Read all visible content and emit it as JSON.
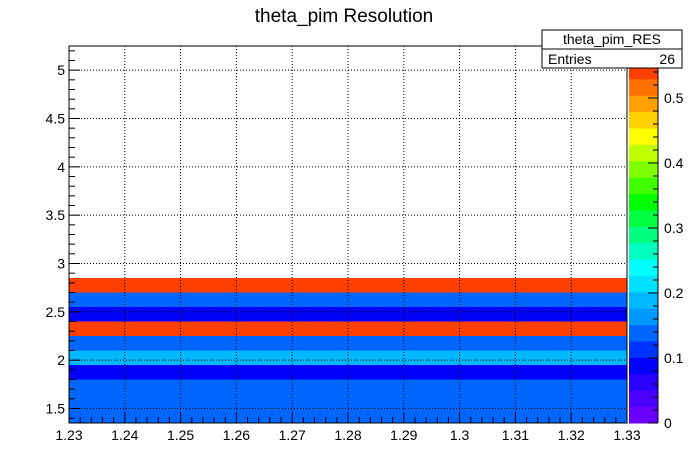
{
  "chart_data": {
    "type": "heatmap",
    "title": "theta_pim Resolution",
    "xlabel": "",
    "ylabel": "",
    "xlim": [
      1.23,
      1.33
    ],
    "ylim": [
      1.35,
      5.25
    ],
    "x_ticks": [
      "1.23",
      "1.24",
      "1.25",
      "1.26",
      "1.27",
      "1.28",
      "1.29",
      "1.3",
      "1.31",
      "1.32",
      "1.33"
    ],
    "y_ticks": [
      "1.5",
      "2",
      "2.5",
      "3",
      "3.5",
      "4",
      "4.5",
      "5"
    ],
    "grid": true,
    "bin_height": 0.15,
    "rows": [
      {
        "y_low": 1.35,
        "y_high": 1.5,
        "value": 0.15
      },
      {
        "y_low": 1.5,
        "y_high": 1.65,
        "value": 0.15
      },
      {
        "y_low": 1.65,
        "y_high": 1.8,
        "value": 0.15
      },
      {
        "y_low": 1.8,
        "y_high": 1.95,
        "value": 0.08
      },
      {
        "y_low": 1.95,
        "y_high": 2.1,
        "value": 0.2
      },
      {
        "y_low": 2.1,
        "y_high": 2.25,
        "value": 0.15
      },
      {
        "y_low": 2.25,
        "y_high": 2.4,
        "value": 0.55
      },
      {
        "y_low": 2.4,
        "y_high": 2.55,
        "value": 0.08
      },
      {
        "y_low": 2.55,
        "y_high": 2.7,
        "value": 0.15
      },
      {
        "y_low": 2.7,
        "y_high": 2.85,
        "value": 0.55
      }
    ],
    "colorbar": {
      "min": 0,
      "max": 0.58,
      "ticks": [
        "0",
        "0.1",
        "0.2",
        "0.3",
        "0.4",
        "0.5"
      ],
      "tick_values": [
        0,
        0.1,
        0.2,
        0.3,
        0.4,
        0.5
      ],
      "colors": [
        "#6a00ff",
        "#4b00ff",
        "#2a00ff",
        "#0000ff",
        "#0033ff",
        "#0066ff",
        "#0099ff",
        "#00b8ff",
        "#00e0ff",
        "#00ffff",
        "#00ffc0",
        "#00ff80",
        "#00ff40",
        "#00ff00",
        "#40ff00",
        "#80ff00",
        "#c0ff00",
        "#ffff00",
        "#ffd000",
        "#ffa000",
        "#ff7000",
        "#ff4000",
        "#ff0000"
      ]
    }
  },
  "stats_box": {
    "title": "theta_pim_RES",
    "entries_label": "Entries",
    "entries_value": "26"
  }
}
